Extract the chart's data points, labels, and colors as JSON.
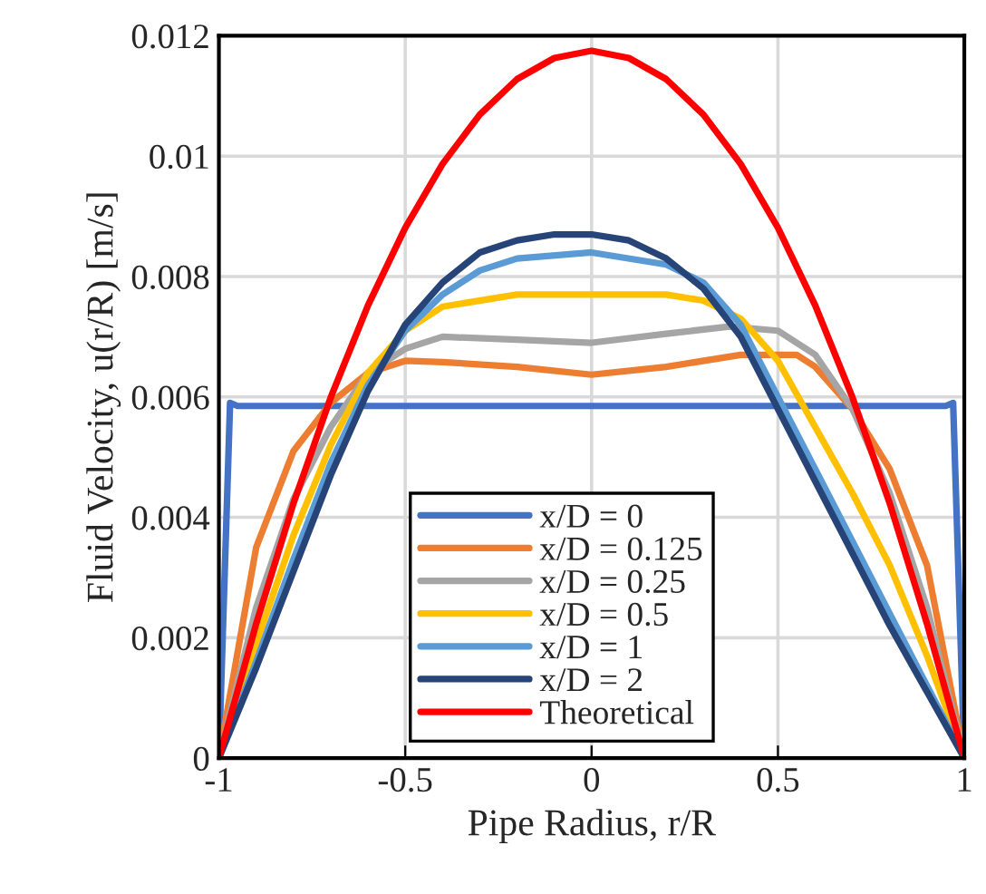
{
  "chart_data": {
    "type": "line",
    "xlabel": "Pipe Radius, r/R",
    "ylabel": "Fluid Velocity, u(r/R) [m/s]",
    "xlim": [
      -1,
      1
    ],
    "ylim": [
      0,
      0.012
    ],
    "xticks": [
      -1,
      -0.5,
      0,
      0.5,
      1
    ],
    "yticks": [
      0,
      0.002,
      0.004,
      0.006,
      0.008,
      0.01,
      0.012
    ],
    "grid": true,
    "legend": "bottom",
    "marker": "none",
    "line_style": "solid",
    "series": [
      {
        "name": "x/D = 0",
        "color": "#4472c4",
        "x": [
          -1,
          -0.97,
          -0.95,
          0,
          0.95,
          0.97,
          1
        ],
        "values": [
          0,
          0.0059,
          0.00585,
          0.00585,
          0.00585,
          0.0059,
          0
        ]
      },
      {
        "name": "x/D = 0.125",
        "color": "#ed7d31",
        "x": [
          -1,
          -0.9,
          -0.8,
          -0.7,
          -0.6,
          -0.5,
          -0.4,
          -0.2,
          0,
          0.2,
          0.4,
          0.55,
          0.6,
          0.7,
          0.8,
          0.9,
          1
        ],
        "values": [
          0,
          0.0035,
          0.0051,
          0.0059,
          0.0064,
          0.0066,
          0.00658,
          0.0065,
          0.00637,
          0.0065,
          0.0067,
          0.0067,
          0.0065,
          0.0058,
          0.0048,
          0.0032,
          0
        ]
      },
      {
        "name": "x/D = 0.25",
        "color": "#a5a5a5",
        "x": [
          -1,
          -0.9,
          -0.8,
          -0.7,
          -0.6,
          -0.5,
          -0.4,
          -0.2,
          0,
          0.2,
          0.37,
          0.5,
          0.6,
          0.7,
          0.8,
          0.9,
          1
        ],
        "values": [
          0,
          0.0025,
          0.0043,
          0.0055,
          0.0064,
          0.0068,
          0.007,
          0.00695,
          0.0069,
          0.00705,
          0.00717,
          0.0071,
          0.0067,
          0.0058,
          0.0044,
          0.0025,
          0
        ]
      },
      {
        "name": "x/D = 0.5",
        "color": "#ffc000",
        "x": [
          -1,
          -0.9,
          -0.8,
          -0.7,
          -0.6,
          -0.5,
          -0.4,
          -0.2,
          0,
          0.2,
          0.3,
          0.4,
          0.5,
          0.6,
          0.7,
          0.8,
          0.9,
          1
        ],
        "values": [
          0,
          0.0019,
          0.0037,
          0.0052,
          0.0064,
          0.0071,
          0.0075,
          0.0077,
          0.0077,
          0.0077,
          0.0076,
          0.0073,
          0.0066,
          0.0055,
          0.0044,
          0.0032,
          0.0017,
          0
        ]
      },
      {
        "name": "x/D = 1",
        "color": "#5b9bd5",
        "x": [
          -1,
          -0.9,
          -0.8,
          -0.7,
          -0.6,
          -0.5,
          -0.4,
          -0.3,
          -0.2,
          0,
          0.2,
          0.3,
          0.4,
          0.5,
          0.6,
          0.7,
          0.8,
          0.9,
          1
        ],
        "values": [
          0,
          0.0016,
          0.0033,
          0.0049,
          0.0062,
          0.0071,
          0.0077,
          0.0081,
          0.0083,
          0.0084,
          0.0082,
          0.0079,
          0.0072,
          0.006,
          0.0048,
          0.0036,
          0.0024,
          0.0012,
          0
        ]
      },
      {
        "name": "x/D = 2",
        "color": "#264478",
        "x": [
          -1,
          -0.9,
          -0.8,
          -0.7,
          -0.6,
          -0.5,
          -0.4,
          -0.3,
          -0.2,
          -0.1,
          0,
          0.1,
          0.2,
          0.3,
          0.4,
          0.5,
          0.6,
          0.7,
          0.8,
          0.9,
          1
        ],
        "values": [
          0,
          0.0015,
          0.0031,
          0.0047,
          0.0061,
          0.0072,
          0.0079,
          0.0084,
          0.0086,
          0.0087,
          0.0087,
          0.0086,
          0.0083,
          0.0078,
          0.007,
          0.0058,
          0.0046,
          0.0034,
          0.0022,
          0.0011,
          0
        ]
      },
      {
        "name": "Theoretical",
        "color": "#ff0000",
        "x": [
          -1,
          -0.9,
          -0.8,
          -0.7,
          -0.6,
          -0.5,
          -0.4,
          -0.3,
          -0.2,
          -0.1,
          0,
          0.1,
          0.2,
          0.3,
          0.4,
          0.5,
          0.6,
          0.7,
          0.8,
          0.9,
          1
        ],
        "values": [
          0,
          0.00223,
          0.00423,
          0.00599,
          0.00752,
          0.00881,
          0.00987,
          0.01069,
          0.01128,
          0.01163,
          0.01175,
          0.01163,
          0.01128,
          0.01069,
          0.00987,
          0.00881,
          0.00752,
          0.00599,
          0.00423,
          0.00223,
          0
        ]
      }
    ]
  }
}
